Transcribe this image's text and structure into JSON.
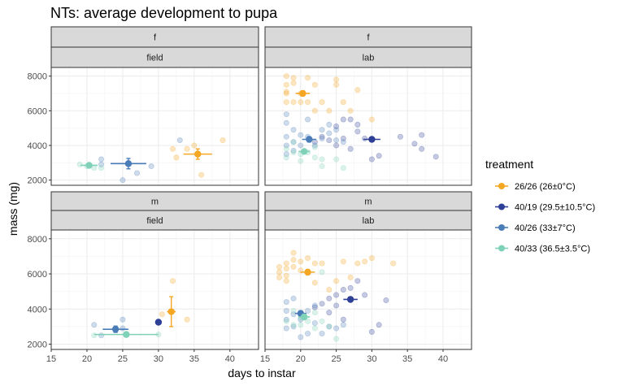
{
  "chart_data": {
    "type": "scatter",
    "title": "NTs: average development to pupa",
    "xlabel": "days to instar",
    "ylabel": "mass (mg)",
    "xlim": [
      15,
      44
    ],
    "ylim": [
      1700,
      8500
    ],
    "x_ticks": [
      15,
      20,
      25,
      30,
      35,
      40
    ],
    "y_ticks": [
      2000,
      4000,
      6000,
      8000
    ],
    "grid": true,
    "legend": {
      "title": "treatment",
      "position": "right"
    },
    "colors": {
      "26/26": "#f5a623",
      "40/19": "#2e3f96",
      "40/26": "#4a7db8",
      "40/33": "#7fd1b8"
    },
    "treatments": [
      {
        "key": "26/26",
        "label": "26/26 (26±0°C)"
      },
      {
        "key": "40/19",
        "label": "40/19 (29.5±10.5°C)"
      },
      {
        "key": "40/26",
        "label": "40/26 (33±7°C)"
      },
      {
        "key": "40/33",
        "label": "40/33 (36.5±3.5°C)"
      }
    ],
    "panels": [
      {
        "row": "f",
        "col": "field",
        "means": [
          {
            "t": "26/26",
            "x": 35.5,
            "y": 3500,
            "xerr": 2.0,
            "yerr": 300
          },
          {
            "t": "40/26",
            "x": 25.8,
            "y": 2950,
            "xerr": 2.5,
            "yerr": 300
          },
          {
            "t": "40/33",
            "x": 20.3,
            "y": 2850,
            "xerr": 1.2,
            "yerr": 80
          }
        ],
        "points": [
          {
            "t": "26/26",
            "x": 32.0,
            "y": 3800
          },
          {
            "t": "26/26",
            "x": 32.5,
            "y": 3300
          },
          {
            "t": "26/26",
            "x": 34.0,
            "y": 3800
          },
          {
            "t": "26/26",
            "x": 35.0,
            "y": 4000
          },
          {
            "t": "26/26",
            "x": 36.0,
            "y": 2300
          },
          {
            "t": "26/26",
            "x": 39.0,
            "y": 4300
          },
          {
            "t": "40/26",
            "x": 22.0,
            "y": 3200
          },
          {
            "t": "40/26",
            "x": 22.0,
            "y": 2900
          },
          {
            "t": "40/26",
            "x": 25.0,
            "y": 2000
          },
          {
            "t": "40/26",
            "x": 27.0,
            "y": 2400
          },
          {
            "t": "40/26",
            "x": 29.0,
            "y": 2800
          },
          {
            "t": "40/26",
            "x": 33.0,
            "y": 4300
          },
          {
            "t": "40/33",
            "x": 19.0,
            "y": 2900
          },
          {
            "t": "40/33",
            "x": 20.0,
            "y": 2800
          },
          {
            "t": "40/33",
            "x": 21.0,
            "y": 2700
          },
          {
            "t": "40/33",
            "x": 22.0,
            "y": 2700
          }
        ]
      },
      {
        "row": "f",
        "col": "lab",
        "means": [
          {
            "t": "26/26",
            "x": 20.3,
            "y": 7000,
            "xerr": 1.0,
            "yerr": 150
          },
          {
            "t": "40/19",
            "x": 30.0,
            "y": 4350,
            "xerr": 1.2,
            "yerr": 120
          },
          {
            "t": "40/26",
            "x": 21.2,
            "y": 4350,
            "xerr": 1.0,
            "yerr": 150
          },
          {
            "t": "40/33",
            "x": 20.5,
            "y": 3650,
            "xerr": 0.8,
            "yerr": 100
          }
        ],
        "points": [
          {
            "t": "26/26",
            "x": 18,
            "y": 8000
          },
          {
            "t": "26/26",
            "x": 18,
            "y": 7500
          },
          {
            "t": "26/26",
            "x": 18,
            "y": 7000
          },
          {
            "t": "26/26",
            "x": 18,
            "y": 6500
          },
          {
            "t": "26/26",
            "x": 18,
            "y": 7100
          },
          {
            "t": "26/26",
            "x": 19,
            "y": 7600
          },
          {
            "t": "26/26",
            "x": 19,
            "y": 6500
          },
          {
            "t": "26/26",
            "x": 19,
            "y": 7900
          },
          {
            "t": "26/26",
            "x": 20,
            "y": 6500
          },
          {
            "t": "26/26",
            "x": 20,
            "y": 7000
          },
          {
            "t": "26/26",
            "x": 21,
            "y": 7900
          },
          {
            "t": "26/26",
            "x": 21,
            "y": 6500
          },
          {
            "t": "26/26",
            "x": 22,
            "y": 6000
          },
          {
            "t": "26/26",
            "x": 22,
            "y": 7500
          },
          {
            "t": "26/26",
            "x": 23,
            "y": 6500
          },
          {
            "t": "26/26",
            "x": 24,
            "y": 6000
          },
          {
            "t": "26/26",
            "x": 25,
            "y": 7500
          },
          {
            "t": "26/26",
            "x": 25,
            "y": 7800
          },
          {
            "t": "26/26",
            "x": 26,
            "y": 6500
          },
          {
            "t": "26/26",
            "x": 27,
            "y": 6000
          },
          {
            "t": "26/26",
            "x": 28,
            "y": 7200
          },
          {
            "t": "26/26",
            "x": 30,
            "y": 5500
          },
          {
            "t": "40/19",
            "x": 22,
            "y": 4200
          },
          {
            "t": "40/19",
            "x": 23,
            "y": 4500
          },
          {
            "t": "40/19",
            "x": 24,
            "y": 4300
          },
          {
            "t": "40/19",
            "x": 25,
            "y": 5100
          },
          {
            "t": "40/19",
            "x": 25,
            "y": 4000
          },
          {
            "t": "40/19",
            "x": 26,
            "y": 5500
          },
          {
            "t": "40/19",
            "x": 26,
            "y": 4400
          },
          {
            "t": "40/19",
            "x": 27,
            "y": 3800
          },
          {
            "t": "40/19",
            "x": 27,
            "y": 5500
          },
          {
            "t": "40/19",
            "x": 28,
            "y": 4800
          },
          {
            "t": "40/19",
            "x": 28,
            "y": 5200
          },
          {
            "t": "40/19",
            "x": 29,
            "y": 4400
          },
          {
            "t": "40/19",
            "x": 30,
            "y": 3200
          },
          {
            "t": "40/19",
            "x": 31,
            "y": 3400
          },
          {
            "t": "40/19",
            "x": 34,
            "y": 4500
          },
          {
            "t": "40/19",
            "x": 36,
            "y": 4100
          },
          {
            "t": "40/19",
            "x": 37,
            "y": 3800
          },
          {
            "t": "40/19",
            "x": 37,
            "y": 4600
          },
          {
            "t": "40/19",
            "x": 39,
            "y": 3350
          },
          {
            "t": "40/26",
            "x": 18,
            "y": 5800
          },
          {
            "t": "40/26",
            "x": 18,
            "y": 5300
          },
          {
            "t": "40/26",
            "x": 18,
            "y": 4500
          },
          {
            "t": "40/26",
            "x": 18,
            "y": 4000
          },
          {
            "t": "40/26",
            "x": 18,
            "y": 3500
          },
          {
            "t": "40/26",
            "x": 19,
            "y": 4900
          },
          {
            "t": "40/26",
            "x": 19,
            "y": 4200
          },
          {
            "t": "40/26",
            "x": 19,
            "y": 3700
          },
          {
            "t": "40/26",
            "x": 20,
            "y": 4600
          },
          {
            "t": "40/26",
            "x": 20,
            "y": 4000
          },
          {
            "t": "40/26",
            "x": 21,
            "y": 4500
          },
          {
            "t": "40/26",
            "x": 21,
            "y": 5500
          },
          {
            "t": "40/26",
            "x": 22,
            "y": 4000
          },
          {
            "t": "40/26",
            "x": 23,
            "y": 4900
          },
          {
            "t": "40/26",
            "x": 23,
            "y": 4400
          },
          {
            "t": "40/26",
            "x": 24,
            "y": 5200
          },
          {
            "t": "40/26",
            "x": 24,
            "y": 4700
          },
          {
            "t": "40/26",
            "x": 25,
            "y": 4900
          },
          {
            "t": "40/26",
            "x": 25,
            "y": 4300
          },
          {
            "t": "40/26",
            "x": 26,
            "y": 4200
          },
          {
            "t": "40/33",
            "x": 18,
            "y": 3800
          },
          {
            "t": "40/33",
            "x": 18,
            "y": 3300
          },
          {
            "t": "40/33",
            "x": 19,
            "y": 3600
          },
          {
            "t": "40/33",
            "x": 19,
            "y": 4200
          },
          {
            "t": "40/33",
            "x": 20,
            "y": 3500
          },
          {
            "t": "40/33",
            "x": 21,
            "y": 3600
          },
          {
            "t": "40/33",
            "x": 22,
            "y": 3300
          },
          {
            "t": "40/33",
            "x": 22,
            "y": 3900
          },
          {
            "t": "40/33",
            "x": 23,
            "y": 3200
          },
          {
            "t": "40/33",
            "x": 23,
            "y": 2800
          },
          {
            "t": "40/33",
            "x": 25,
            "y": 3200
          },
          {
            "t": "40/33",
            "x": 26,
            "y": 2700
          },
          {
            "t": "40/33",
            "x": 20,
            "y": 3100
          }
        ]
      },
      {
        "row": "m",
        "col": "field",
        "means": [
          {
            "t": "26/26",
            "x": 31.8,
            "y": 3850,
            "xerr": 0.6,
            "yerr": 850
          },
          {
            "t": "40/19",
            "x": 30.0,
            "y": 3250,
            "xerr": 0,
            "yerr": 0
          },
          {
            "t": "40/26",
            "x": 24.0,
            "y": 2850,
            "xerr": 1.8,
            "yerr": 180
          },
          {
            "t": "40/33",
            "x": 25.5,
            "y": 2550,
            "xerr": 4.5,
            "yerr": 50
          }
        ],
        "points": [
          {
            "t": "26/26",
            "x": 30.5,
            "y": 3700
          },
          {
            "t": "26/26",
            "x": 32.0,
            "y": 5600
          },
          {
            "t": "26/26",
            "x": 34.0,
            "y": 3400
          },
          {
            "t": "40/26",
            "x": 21.0,
            "y": 3100
          },
          {
            "t": "40/26",
            "x": 22.0,
            "y": 2500
          },
          {
            "t": "40/26",
            "x": 25.0,
            "y": 3400
          },
          {
            "t": "40/26",
            "x": 25.0,
            "y": 2900
          },
          {
            "t": "40/33",
            "x": 21.0,
            "y": 2500
          },
          {
            "t": "40/33",
            "x": 30.0,
            "y": 2550
          }
        ]
      },
      {
        "row": "m",
        "col": "lab",
        "means": [
          {
            "t": "26/26",
            "x": 21.0,
            "y": 6100,
            "xerr": 1.0,
            "yerr": 150
          },
          {
            "t": "40/19",
            "x": 27.0,
            "y": 4550,
            "xerr": 1.0,
            "yerr": 120
          },
          {
            "t": "40/26",
            "x": 20.0,
            "y": 3750,
            "xerr": 0.8,
            "yerr": 150
          },
          {
            "t": "40/33",
            "x": 20.5,
            "y": 3550,
            "xerr": 0.8,
            "yerr": 150
          }
        ],
        "points": [
          {
            "t": "26/26",
            "x": 17,
            "y": 6400
          },
          {
            "t": "26/26",
            "x": 17,
            "y": 6100
          },
          {
            "t": "26/26",
            "x": 17,
            "y": 5800
          },
          {
            "t": "26/26",
            "x": 18,
            "y": 6600
          },
          {
            "t": "26/26",
            "x": 18,
            "y": 6300
          },
          {
            "t": "26/26",
            "x": 18,
            "y": 5900
          },
          {
            "t": "26/26",
            "x": 18,
            "y": 5600
          },
          {
            "t": "26/26",
            "x": 19,
            "y": 7200
          },
          {
            "t": "26/26",
            "x": 19,
            "y": 6800
          },
          {
            "t": "26/26",
            "x": 19,
            "y": 6400
          },
          {
            "t": "26/26",
            "x": 20,
            "y": 6700
          },
          {
            "t": "26/26",
            "x": 20,
            "y": 6200
          },
          {
            "t": "26/26",
            "x": 21,
            "y": 6900
          },
          {
            "t": "26/26",
            "x": 22,
            "y": 6600
          },
          {
            "t": "26/26",
            "x": 22,
            "y": 5500
          },
          {
            "t": "26/26",
            "x": 23,
            "y": 6600
          },
          {
            "t": "26/26",
            "x": 24,
            "y": 5100
          },
          {
            "t": "26/26",
            "x": 25,
            "y": 5600
          },
          {
            "t": "26/26",
            "x": 26,
            "y": 6700
          },
          {
            "t": "26/26",
            "x": 27,
            "y": 5800
          },
          {
            "t": "26/26",
            "x": 28,
            "y": 6600
          },
          {
            "t": "26/26",
            "x": 29,
            "y": 6700
          },
          {
            "t": "26/26",
            "x": 30,
            "y": 6900
          },
          {
            "t": "26/26",
            "x": 33,
            "y": 6600
          },
          {
            "t": "40/19",
            "x": 22,
            "y": 4100
          },
          {
            "t": "40/19",
            "x": 23,
            "y": 4300
          },
          {
            "t": "40/19",
            "x": 24,
            "y": 4600
          },
          {
            "t": "40/19",
            "x": 24,
            "y": 3800
          },
          {
            "t": "40/19",
            "x": 25,
            "y": 4800
          },
          {
            "t": "40/19",
            "x": 25,
            "y": 4200
          },
          {
            "t": "40/19",
            "x": 26,
            "y": 5100
          },
          {
            "t": "40/19",
            "x": 26,
            "y": 3400
          },
          {
            "t": "40/19",
            "x": 27,
            "y": 5200
          },
          {
            "t": "40/19",
            "x": 27,
            "y": 4500
          },
          {
            "t": "40/19",
            "x": 28,
            "y": 5600
          },
          {
            "t": "40/19",
            "x": 29,
            "y": 4800
          },
          {
            "t": "40/19",
            "x": 30,
            "y": 2700
          },
          {
            "t": "40/19",
            "x": 31,
            "y": 3100
          },
          {
            "t": "40/19",
            "x": 32,
            "y": 4500
          },
          {
            "t": "40/26",
            "x": 18,
            "y": 4400
          },
          {
            "t": "40/26",
            "x": 18,
            "y": 3900
          },
          {
            "t": "40/26",
            "x": 18,
            "y": 3400
          },
          {
            "t": "40/26",
            "x": 18,
            "y": 2900
          },
          {
            "t": "40/26",
            "x": 19,
            "y": 4600
          },
          {
            "t": "40/26",
            "x": 19,
            "y": 3700
          },
          {
            "t": "40/26",
            "x": 19,
            "y": 3000
          },
          {
            "t": "40/26",
            "x": 20,
            "y": 2400
          },
          {
            "t": "40/26",
            "x": 20,
            "y": 3400
          },
          {
            "t": "40/26",
            "x": 21,
            "y": 3900
          },
          {
            "t": "40/26",
            "x": 21,
            "y": 2600
          },
          {
            "t": "40/26",
            "x": 22,
            "y": 3200
          },
          {
            "t": "40/26",
            "x": 22,
            "y": 4200
          },
          {
            "t": "40/26",
            "x": 23,
            "y": 2600
          },
          {
            "t": "40/26",
            "x": 24,
            "y": 3000
          },
          {
            "t": "40/26",
            "x": 25,
            "y": 2900
          },
          {
            "t": "40/26",
            "x": 26,
            "y": 3100
          },
          {
            "t": "40/33",
            "x": 18,
            "y": 3300
          },
          {
            "t": "40/33",
            "x": 19,
            "y": 3100
          },
          {
            "t": "40/33",
            "x": 19,
            "y": 3900
          },
          {
            "t": "40/33",
            "x": 20,
            "y": 3500
          },
          {
            "t": "40/33",
            "x": 20,
            "y": 3100
          },
          {
            "t": "40/33",
            "x": 21,
            "y": 3300
          },
          {
            "t": "40/33",
            "x": 22,
            "y": 2900
          },
          {
            "t": "40/33",
            "x": 22,
            "y": 3800
          },
          {
            "t": "40/33",
            "x": 23,
            "y": 3300
          },
          {
            "t": "40/33",
            "x": 24,
            "y": 3000
          },
          {
            "t": "40/33",
            "x": 25,
            "y": 2300
          },
          {
            "t": "40/33",
            "x": 23,
            "y": 6100
          }
        ]
      }
    ]
  }
}
